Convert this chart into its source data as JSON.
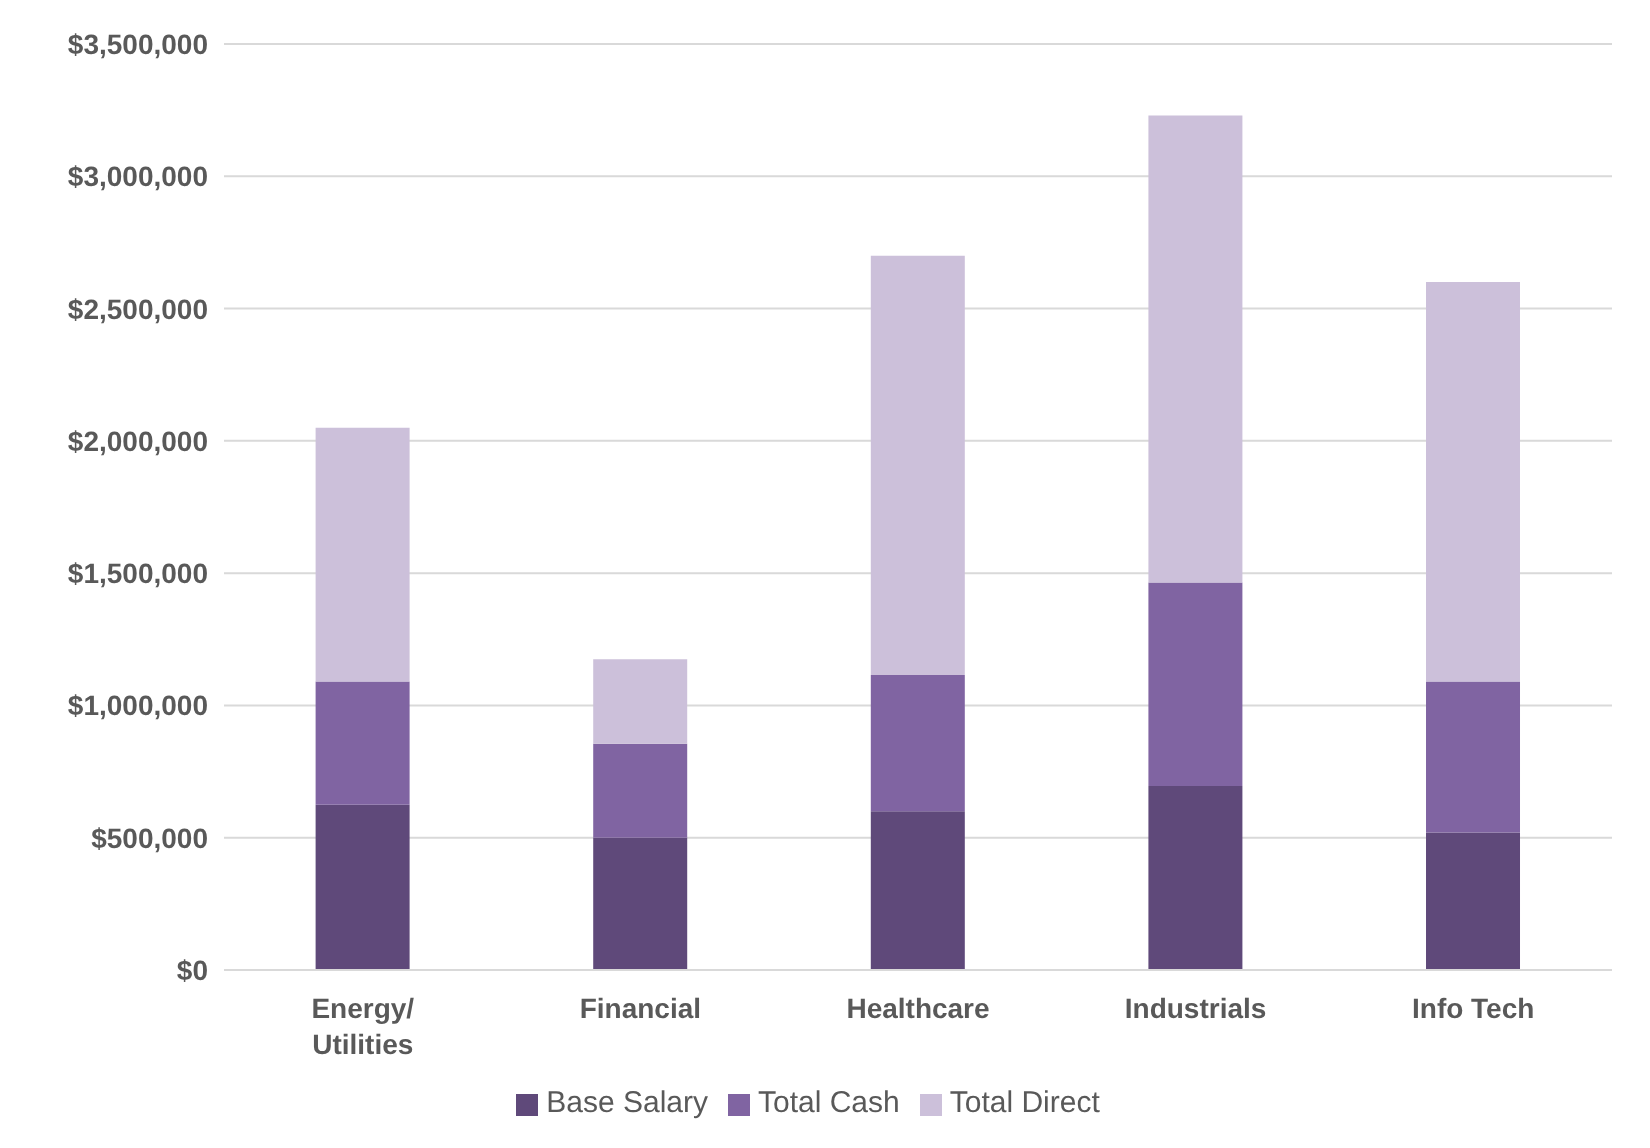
{
  "chart_data": {
    "type": "bar",
    "stacked": true,
    "categories": [
      "Energy/\nUtilities",
      "Financial",
      "Healthcare",
      "Industrials",
      "Info Tech"
    ],
    "series": [
      {
        "name": "Base Salary",
        "color": "#5f497a",
        "values": [
          625000,
          500000,
          600000,
          695000,
          520000
        ]
      },
      {
        "name": "Total Cash",
        "color": "#8064a2",
        "values": [
          465000,
          355000,
          515000,
          770000,
          570000
        ]
      },
      {
        "name": "Total Direct",
        "color": "#ccc0da",
        "values": [
          960000,
          320000,
          1585000,
          1765000,
          1510000
        ]
      }
    ],
    "ylim": [
      0,
      3500000
    ],
    "yticks": [
      {
        "value": 0,
        "label": "$0"
      },
      {
        "value": 500000,
        "label": "$500,000"
      },
      {
        "value": 1000000,
        "label": "$1,000,000"
      },
      {
        "value": 1500000,
        "label": "$1,500,000"
      },
      {
        "value": 2000000,
        "label": "$2,000,000"
      },
      {
        "value": 2500000,
        "label": "$2,500,000"
      },
      {
        "value": 3000000,
        "label": "$3,000,000"
      },
      {
        "value": 3500000,
        "label": "$3,500,000"
      }
    ],
    "grid": "y",
    "legend": "bottom"
  }
}
